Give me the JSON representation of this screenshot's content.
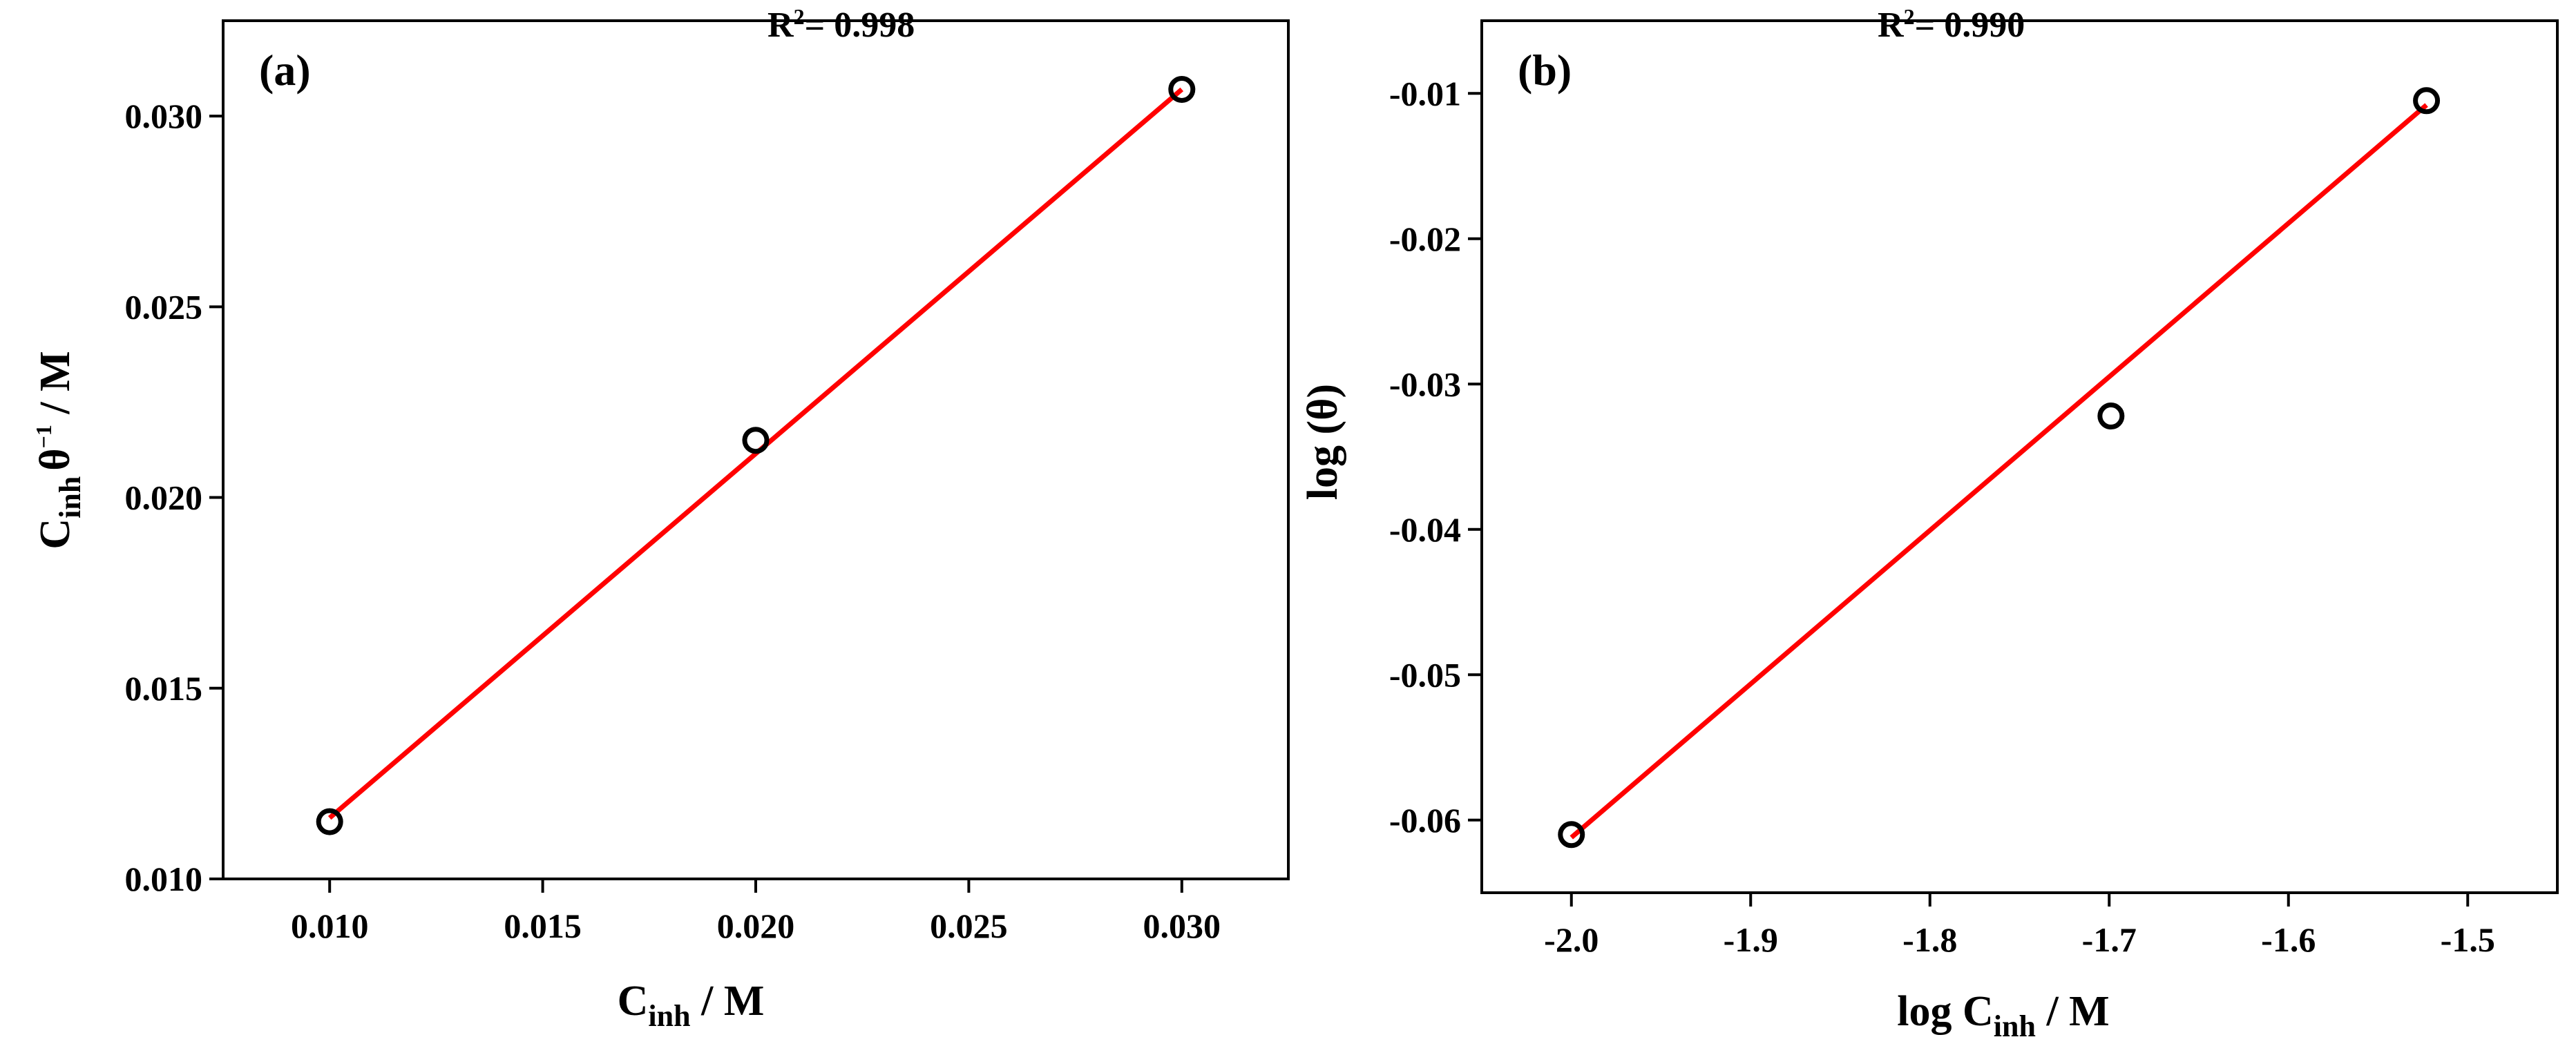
{
  "chart_data": [
    {
      "type": "scatter",
      "panel_label": "(a)",
      "annotation": {
        "r2_prefix": "R",
        "r2_exp": "2",
        "r2_value": "= 0.998"
      },
      "x": [
        0.01,
        0.02,
        0.03
      ],
      "y": [
        0.0115,
        0.0215,
        0.0307
      ],
      "fit": {
        "x": [
          0.01,
          0.03
        ],
        "y": [
          0.0116,
          0.0307
        ],
        "color": "#ff0000"
      },
      "xlim": [
        0.0075,
        0.0325
      ],
      "ylim": [
        0.01,
        0.0325
      ],
      "xticks": [
        0.01,
        0.015,
        0.02,
        0.025,
        0.03
      ],
      "xtick_labels": [
        "0.010",
        "0.015",
        "0.020",
        "0.025",
        "0.030"
      ],
      "yticks": [
        0.01,
        0.015,
        0.02,
        0.025,
        0.03
      ],
      "ytick_labels": [
        "0.010",
        "0.015",
        "0.020",
        "0.025",
        "0.030"
      ],
      "xlabel": {
        "main": "C",
        "sub": "inh",
        "rest": " / M"
      },
      "ylabel": {
        "main": "C",
        "sub": "inh",
        "mid": "θ",
        "sup": "−1",
        "rest": " / M"
      }
    },
    {
      "type": "scatter",
      "panel_label": "(b)",
      "annotation": {
        "r2_prefix": "R",
        "r2_exp": "2",
        "r2_value": "= 0.990"
      },
      "x": [
        -2.0,
        -1.699,
        -1.523
      ],
      "y": [
        -0.061,
        -0.0322,
        -0.0105
      ],
      "fit": {
        "x": [
          -2.0,
          -1.523
        ],
        "y": [
          -0.0612,
          -0.0108
        ],
        "color": "#ff0000"
      },
      "xlim": [
        -2.05,
        -1.45
      ],
      "ylim": [
        -0.065,
        -0.005
      ],
      "xticks": [
        -2.0,
        -1.9,
        -1.8,
        -1.7,
        -1.6,
        -1.5
      ],
      "xtick_labels": [
        "-2.0",
        "-1.9",
        "-1.8",
        "-1.7",
        "-1.6",
        "-1.5"
      ],
      "yticks": [
        -0.06,
        -0.05,
        -0.04,
        -0.03,
        -0.02,
        -0.01
      ],
      "ytick_labels": [
        "-0.06",
        "-0.05",
        "-0.04",
        "-0.03",
        "-0.02",
        "-0.01"
      ],
      "xlabel": {
        "main": "log C",
        "sub": "inh",
        "rest": " / M"
      },
      "ylabel": {
        "main": "log (θ)"
      }
    }
  ]
}
